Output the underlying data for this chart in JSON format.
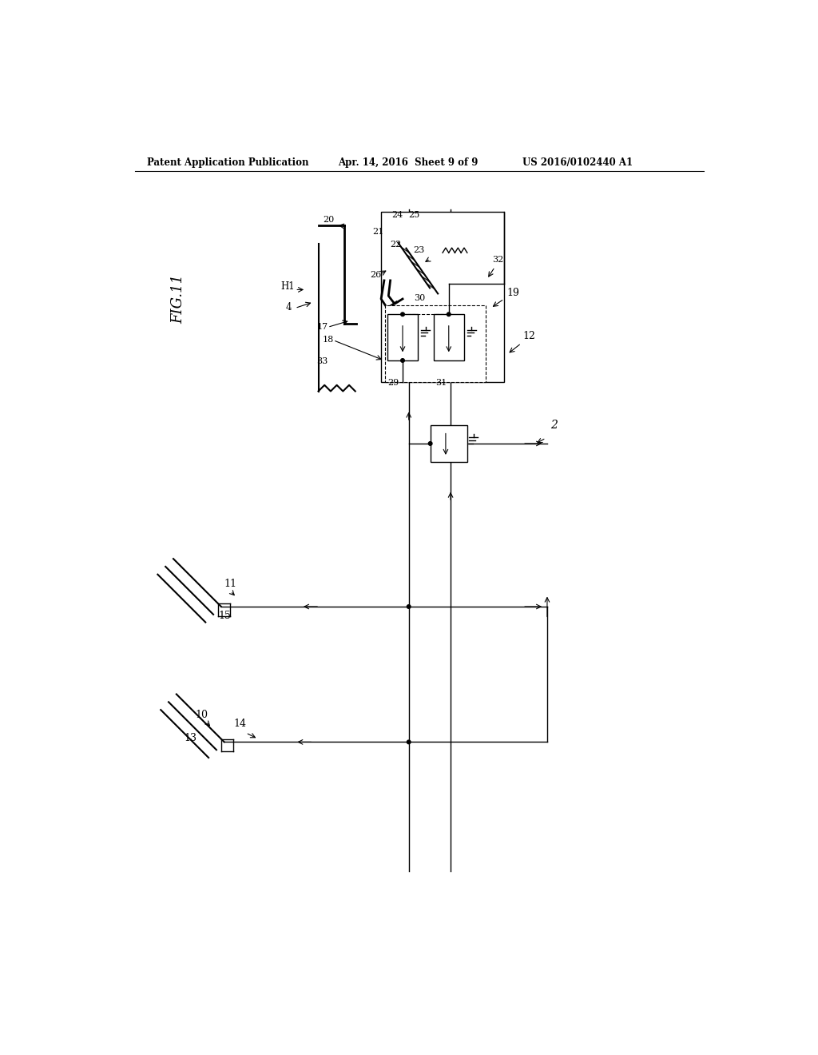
{
  "title_left": "Patent Application Publication",
  "title_center": "Apr. 14, 2016  Sheet 9 of 9",
  "title_right": "US 2016/0102440 A1",
  "fig_label": "FIG.11",
  "background_color": "#ffffff",
  "line_color": "#000000"
}
